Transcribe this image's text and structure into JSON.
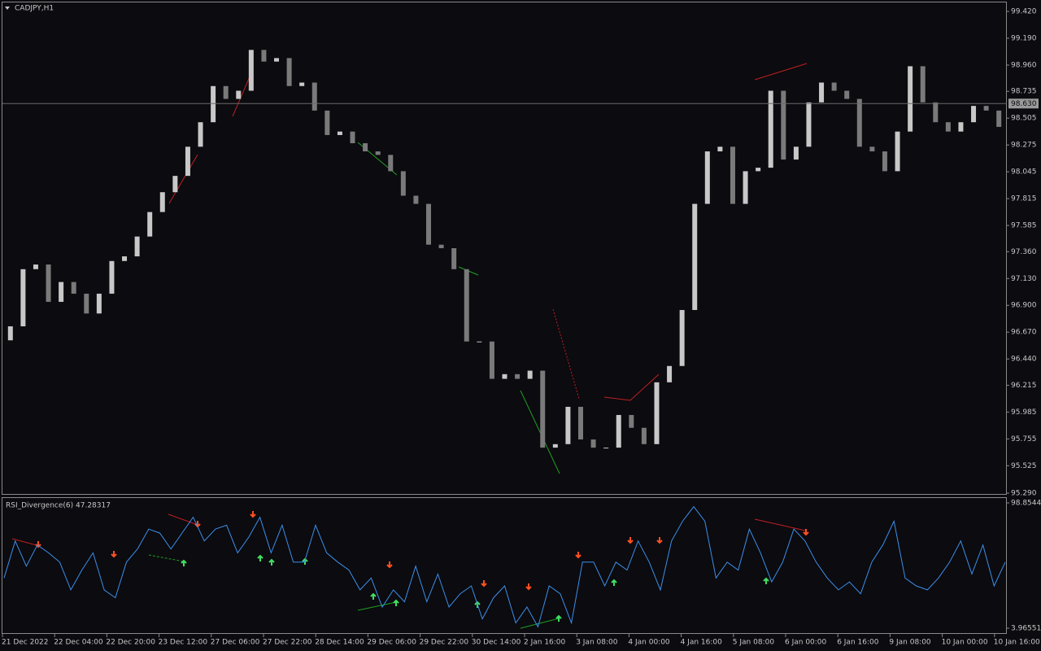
{
  "chart_data": [
    {
      "type": "candlestick",
      "title": "CADJPY,H1",
      "color_up": "#c8c8c8",
      "color_down": "#7a7a7a",
      "open": [
        96.6,
        96.72,
        97.21,
        97.25,
        96.93,
        97.1,
        97.0,
        96.83,
        97.0,
        97.28,
        97.32,
        97.49,
        97.7,
        97.87,
        98.01,
        98.26,
        98.47,
        98.78,
        98.67,
        98.74,
        99.09,
        98.99,
        99.02,
        98.78,
        98.81,
        98.57,
        98.36,
        98.39,
        98.29,
        98.22,
        98.19,
        98.05,
        97.84,
        97.77,
        97.42,
        97.39,
        97.21,
        96.59,
        96.59,
        96.27,
        96.31,
        96.27,
        96.34,
        95.68,
        95.71,
        96.03,
        95.75,
        95.68,
        95.68,
        95.96,
        95.85,
        95.71,
        96.24,
        96.38,
        96.86,
        97.77,
        98.22,
        98.26,
        97.77,
        98.05,
        98.08,
        98.74,
        98.15,
        98.26,
        98.64,
        98.81,
        98.74,
        98.67,
        98.26,
        98.22,
        98.05,
        98.39,
        98.95,
        98.64,
        98.47,
        98.39,
        98.47,
        98.61,
        98.57
      ],
      "close": [
        96.72,
        97.21,
        97.25,
        96.93,
        97.1,
        97.0,
        96.83,
        97.0,
        97.28,
        97.32,
        97.49,
        97.7,
        97.87,
        98.01,
        98.26,
        98.47,
        98.78,
        98.67,
        98.74,
        99.09,
        98.99,
        99.02,
        98.78,
        98.81,
        98.57,
        98.36,
        98.39,
        98.29,
        98.22,
        98.19,
        98.05,
        97.84,
        97.77,
        97.42,
        97.39,
        97.21,
        96.59,
        96.59,
        96.27,
        96.31,
        96.27,
        96.34,
        95.68,
        95.71,
        96.03,
        95.75,
        95.68,
        95.68,
        95.96,
        95.85,
        95.71,
        96.24,
        96.38,
        96.86,
        97.77,
        98.22,
        98.26,
        97.77,
        98.05,
        98.08,
        98.74,
        98.15,
        98.26,
        98.64,
        98.81,
        98.74,
        98.67,
        98.26,
        98.22,
        98.05,
        98.39,
        98.95,
        98.64,
        98.47,
        98.39,
        98.47,
        98.61,
        98.57,
        98.43
      ],
      "ylim": [
        95.276,
        99.497
      ],
      "yticks": [
        {
          "value": 99.42,
          "label": "99.420"
        },
        {
          "value": 99.19,
          "label": "99.190"
        },
        {
          "value": 98.96,
          "label": "98.960"
        },
        {
          "value": 98.735,
          "label": "98.735"
        },
        {
          "value": 98.505,
          "label": "98.505"
        },
        {
          "value": 98.275,
          "label": "98.275"
        },
        {
          "value": 98.045,
          "label": "98.045"
        },
        {
          "value": 97.815,
          "label": "97.815"
        },
        {
          "value": 97.585,
          "label": "97.585"
        },
        {
          "value": 97.36,
          "label": "97.360"
        },
        {
          "value": 97.13,
          "label": "97.130"
        },
        {
          "value": 96.9,
          "label": "96.900"
        },
        {
          "value": 96.67,
          "label": "96.670"
        },
        {
          "value": 96.44,
          "label": "96.440"
        },
        {
          "value": 96.215,
          "label": "96.215"
        },
        {
          "value": 95.985,
          "label": "95.985"
        },
        {
          "value": 95.755,
          "label": "95.755"
        },
        {
          "value": 95.525,
          "label": "95.525"
        },
        {
          "value": 95.29,
          "label": "95.290"
        }
      ],
      "current_price": {
        "value": 98.63,
        "label": "98.630"
      }
    },
    {
      "type": "line",
      "title": "RSI_Divergence(6) 47.28317",
      "color": "#3d8fe8",
      "values": [
        42,
        70,
        51,
        67,
        61,
        54,
        33,
        48,
        61,
        33,
        27,
        54,
        64,
        79,
        76,
        64,
        76,
        88,
        70,
        79,
        82,
        61,
        73,
        88,
        61,
        82,
        54,
        54,
        82,
        61,
        54,
        48,
        33,
        42,
        20,
        33,
        24,
        51,
        24,
        45,
        20,
        30,
        36,
        11,
        27,
        36,
        8,
        20,
        5,
        36,
        30,
        8,
        54,
        54,
        36,
        54,
        48,
        70,
        54,
        33,
        70,
        85,
        96,
        85,
        42,
        54,
        48,
        79,
        61,
        39,
        54,
        79,
        70,
        54,
        42,
        33,
        39,
        30,
        54,
        67,
        85,
        42,
        36,
        33,
        42,
        54,
        70,
        45,
        67,
        36,
        54
      ],
      "ylim": [
        0.27,
        102.55
      ],
      "yticks": [
        98.85446,
        3.96551
      ]
    }
  ],
  "time_axis": [
    "21 Dec 2022",
    "22 Dec 04:00",
    "22 Dec 20:00",
    "23 Dec 12:00",
    "27 Dec 06:00",
    "27 Dec 22:00",
    "28 Dec 14:00",
    "29 Dec 06:00",
    "29 Dec 22:00",
    "30 Dec 14:00",
    "2 Jan 16:00",
    "3 Jan 08:00",
    "4 Jan 00:00",
    "4 Jan 16:00",
    "5 Jan 08:00",
    "6 Jan 00:00",
    "6 Jan 16:00",
    "9 Jan 08:00",
    "10 Jan 00:00",
    "10 Jan 16:00"
  ]
}
